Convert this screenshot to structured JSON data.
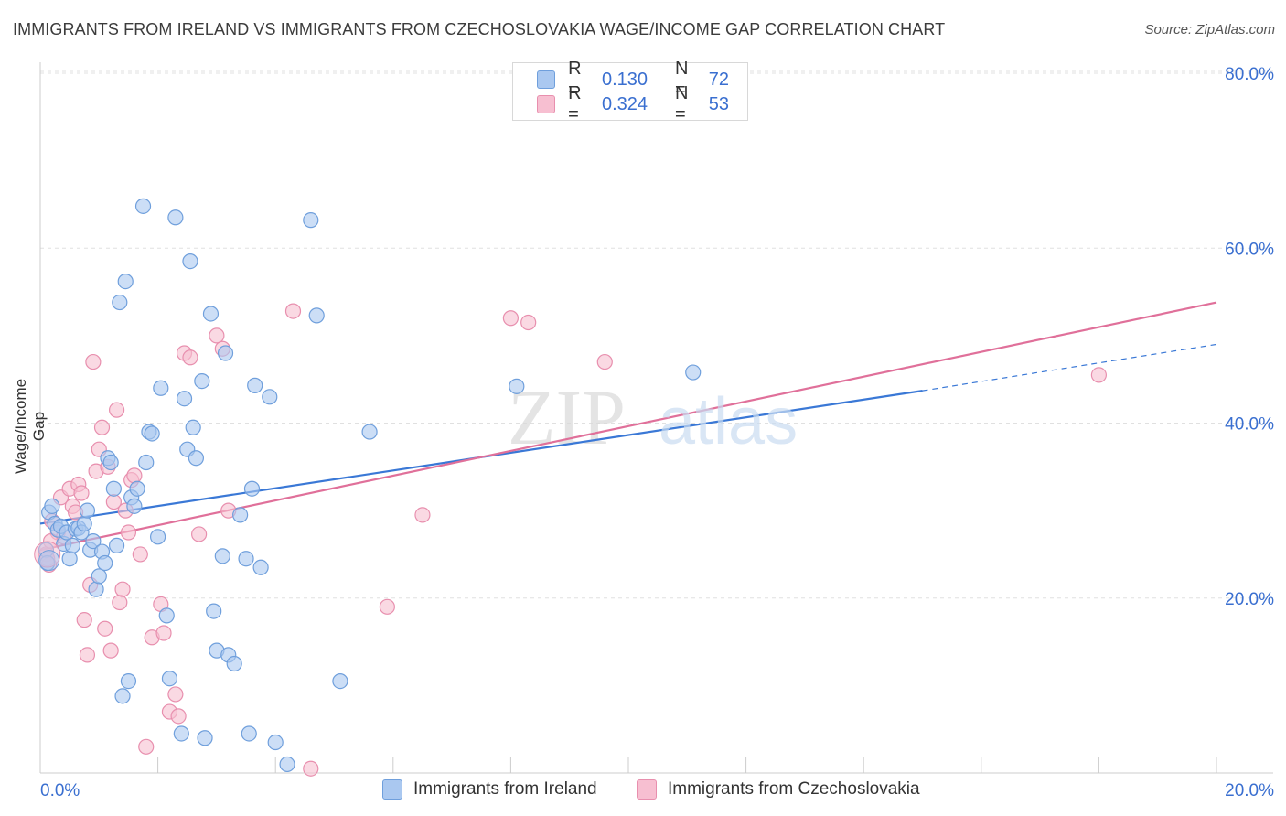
{
  "title": "IMMIGRANTS FROM IRELAND VS IMMIGRANTS FROM CZECHOSLOVAKIA WAGE/INCOME GAP CORRELATION CHART",
  "source": "Source: ZipAtlas.com",
  "watermark": "ZIPatlas",
  "legend": {
    "rows": [
      {
        "r_label": "R =",
        "r_value": "0.130",
        "n_label": "N =",
        "n_value": "72"
      },
      {
        "r_label": "R =",
        "r_value": "0.324",
        "n_label": "N =",
        "n_value": "53"
      }
    ]
  },
  "colors": {
    "ireland_fill": "#aac8f0",
    "ireland_stroke": "#6f9fdc",
    "ireland_line": "#3a78d6",
    "czech_fill": "#f7bfd1",
    "czech_stroke": "#e88fae",
    "czech_line": "#e0709a",
    "axis_text": "#3a6fd0",
    "grid": "#e0e0e0"
  },
  "chart_data": {
    "type": "scatter",
    "title": "IMMIGRANTS FROM IRELAND VS IMMIGRANTS FROM CZECHOSLOVAKIA WAGE/INCOME GAP CORRELATION CHART",
    "xlabel": "",
    "ylabel": "Wage/Income Gap",
    "xlim": [
      0,
      20
    ],
    "ylim": [
      0,
      80
    ],
    "x_ticks": [
      "0.0%",
      "20.0%"
    ],
    "y_ticks": [
      "20.0%",
      "40.0%",
      "60.0%",
      "80.0%"
    ],
    "y_tick_values": [
      20,
      40,
      60,
      80
    ],
    "grid": true,
    "legend_position": "top-center",
    "series": [
      {
        "name": "Immigrants from Ireland",
        "r": 0.13,
        "n": 72,
        "trend": {
          "x0": 0,
          "y0": 28.5,
          "x1": 15,
          "y1": 43.7,
          "dashed_to_x": 20,
          "dashed_to_y": 49.0
        },
        "points": [
          [
            0.15,
            29.8
          ],
          [
            0.2,
            30.5
          ],
          [
            0.25,
            28.5
          ],
          [
            0.3,
            27.8
          ],
          [
            0.35,
            28.2
          ],
          [
            0.4,
            26.2
          ],
          [
            0.45,
            27.5
          ],
          [
            0.5,
            24.5
          ],
          [
            0.55,
            26.0
          ],
          [
            0.6,
            27.9
          ],
          [
            0.65,
            28.0
          ],
          [
            0.7,
            27.5
          ],
          [
            0.75,
            28.5
          ],
          [
            0.8,
            30.0
          ],
          [
            0.85,
            25.5
          ],
          [
            0.9,
            26.5
          ],
          [
            0.95,
            21.0
          ],
          [
            1.0,
            22.5
          ],
          [
            1.05,
            25.3
          ],
          [
            1.1,
            24.0
          ],
          [
            1.15,
            36.0
          ],
          [
            1.2,
            35.5
          ],
          [
            1.25,
            32.5
          ],
          [
            1.3,
            26.0
          ],
          [
            1.35,
            53.8
          ],
          [
            1.4,
            8.8
          ],
          [
            1.45,
            56.2
          ],
          [
            1.5,
            10.5
          ],
          [
            1.55,
            31.5
          ],
          [
            1.6,
            30.5
          ],
          [
            1.65,
            32.5
          ],
          [
            1.75,
            64.8
          ],
          [
            1.8,
            35.5
          ],
          [
            1.85,
            39.0
          ],
          [
            1.9,
            38.8
          ],
          [
            2.0,
            27.0
          ],
          [
            2.05,
            44.0
          ],
          [
            2.15,
            18.0
          ],
          [
            2.2,
            10.8
          ],
          [
            2.3,
            63.5
          ],
          [
            2.4,
            4.5
          ],
          [
            2.45,
            42.8
          ],
          [
            2.5,
            37.0
          ],
          [
            2.55,
            58.5
          ],
          [
            2.6,
            39.5
          ],
          [
            2.65,
            36.0
          ],
          [
            2.75,
            44.8
          ],
          [
            2.8,
            4.0
          ],
          [
            2.9,
            52.5
          ],
          [
            2.95,
            18.5
          ],
          [
            3.0,
            14.0
          ],
          [
            3.1,
            24.8
          ],
          [
            3.15,
            48.0
          ],
          [
            3.2,
            13.5
          ],
          [
            3.3,
            12.5
          ],
          [
            3.4,
            29.5
          ],
          [
            3.5,
            24.5
          ],
          [
            3.55,
            4.5
          ],
          [
            3.6,
            32.5
          ],
          [
            3.65,
            44.3
          ],
          [
            3.75,
            23.5
          ],
          [
            3.9,
            43.0
          ],
          [
            4.0,
            3.5
          ],
          [
            4.2,
            1.0
          ],
          [
            4.6,
            63.2
          ],
          [
            4.7,
            52.3
          ],
          [
            5.1,
            10.5
          ],
          [
            5.6,
            39.0
          ],
          [
            8.1,
            44.2
          ],
          [
            11.1,
            45.8
          ],
          [
            0.1,
            25.5
          ],
          [
            0.12,
            24.0
          ]
        ]
      },
      {
        "name": "Immigrants from Czechoslovakia",
        "r": 0.324,
        "n": 53,
        "trend": {
          "x0": 0,
          "y0": 25.5,
          "x1": 20,
          "y1": 53.8
        },
        "points": [
          [
            0.1,
            25.0
          ],
          [
            0.15,
            23.8
          ],
          [
            0.2,
            28.8
          ],
          [
            0.3,
            27.5
          ],
          [
            0.35,
            31.5
          ],
          [
            0.4,
            27.0
          ],
          [
            0.5,
            32.5
          ],
          [
            0.55,
            30.5
          ],
          [
            0.6,
            29.8
          ],
          [
            0.65,
            33.0
          ],
          [
            0.7,
            32.0
          ],
          [
            0.75,
            17.5
          ],
          [
            0.8,
            13.5
          ],
          [
            0.85,
            21.5
          ],
          [
            0.9,
            47.0
          ],
          [
            0.95,
            34.5
          ],
          [
            1.0,
            37.0
          ],
          [
            1.05,
            39.5
          ],
          [
            1.1,
            16.5
          ],
          [
            1.15,
            35.0
          ],
          [
            1.2,
            14.0
          ],
          [
            1.25,
            31.0
          ],
          [
            1.3,
            41.5
          ],
          [
            1.35,
            19.5
          ],
          [
            1.4,
            21.0
          ],
          [
            1.45,
            30.0
          ],
          [
            1.5,
            27.5
          ],
          [
            1.55,
            33.5
          ],
          [
            1.6,
            34.0
          ],
          [
            1.7,
            25.0
          ],
          [
            1.8,
            3.0
          ],
          [
            1.9,
            15.5
          ],
          [
            2.05,
            19.3
          ],
          [
            2.1,
            16.0
          ],
          [
            2.2,
            7.0
          ],
          [
            2.3,
            9.0
          ],
          [
            2.35,
            6.5
          ],
          [
            2.45,
            48.0
          ],
          [
            2.55,
            47.5
          ],
          [
            2.7,
            27.3
          ],
          [
            3.0,
            50.0
          ],
          [
            3.1,
            48.5
          ],
          [
            3.2,
            30.0
          ],
          [
            4.3,
            52.8
          ],
          [
            4.6,
            0.5
          ],
          [
            5.9,
            19.0
          ],
          [
            6.5,
            29.5
          ],
          [
            8.0,
            52.0
          ],
          [
            8.3,
            51.5
          ],
          [
            9.6,
            47.0
          ],
          [
            18.0,
            45.5
          ],
          [
            0.12,
            24.5
          ],
          [
            0.18,
            26.5
          ]
        ]
      }
    ]
  },
  "bottom_legend": [
    "Immigrants from Ireland",
    "Immigrants from Czechoslovakia"
  ]
}
